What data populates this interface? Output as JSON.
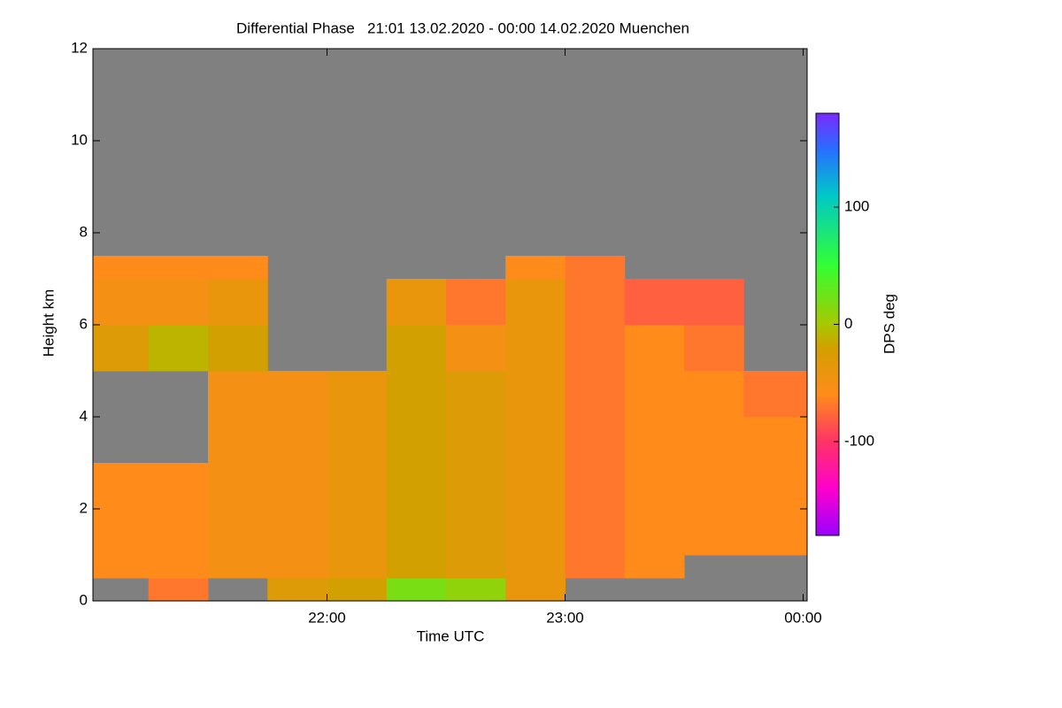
{
  "chart_data": {
    "type": "heatmap",
    "title": "Differential Phase   21:01 13.02.2020 - 00:00 14.02.2020 Muenchen",
    "x_label": "Time UTC",
    "y_label": "Height km",
    "colorbar_label": "DPS deg",
    "xbins": [
      21.0167,
      21.25,
      21.5,
      21.75,
      22,
      22.25,
      22.5,
      22.75,
      23,
      23.25,
      23.5,
      23.75,
      24.0167
    ],
    "ybins": [
      0,
      0.5,
      1,
      2,
      3,
      4,
      5,
      6,
      7,
      7.5
    ],
    "values": [
      [
        null,
        -70,
        null,
        -30,
        -20,
        20,
        10,
        -40,
        null,
        null,
        null,
        null
      ],
      [
        -60,
        -60,
        -50,
        -50,
        -40,
        -20,
        -30,
        -40,
        -70,
        -60,
        null,
        null
      ],
      [
        -60,
        -60,
        -50,
        -50,
        -40,
        -20,
        -30,
        -40,
        -70,
        -60,
        -60,
        -60
      ],
      [
        -60,
        -60,
        -50,
        -50,
        -40,
        -20,
        -30,
        -40,
        -70,
        -60,
        -60,
        -60
      ],
      [
        null,
        null,
        -50,
        -50,
        -40,
        -20,
        -30,
        -40,
        -70,
        -60,
        -60,
        -60
      ],
      [
        null,
        null,
        -50,
        -50,
        -40,
        -20,
        -30,
        -40,
        -70,
        -60,
        -60,
        -70
      ],
      [
        -30,
        -10,
        -20,
        null,
        null,
        -20,
        -50,
        -40,
        -70,
        -60,
        -70,
        null
      ],
      [
        -50,
        -50,
        -40,
        null,
        null,
        -40,
        -70,
        -40,
        -70,
        -80,
        -80,
        null
      ],
      [
        -60,
        -60,
        -60,
        null,
        null,
        null,
        null,
        -60,
        -70,
        null,
        null,
        null
      ]
    ],
    "missing_color": "#808080",
    "colorscale": [
      [
        -180,
        "#9a00ff"
      ],
      [
        -140,
        "#ff00cc"
      ],
      [
        -100,
        "#ff3366"
      ],
      [
        -60,
        "#ff8c1a"
      ],
      [
        -20,
        "#d2a000"
      ],
      [
        0,
        "#a8c800"
      ],
      [
        50,
        "#33ff33"
      ],
      [
        110,
        "#00c8c8"
      ],
      [
        150,
        "#2a6cff"
      ],
      [
        180,
        "#7a2aff"
      ]
    ],
    "xlim": [
      21.0167,
      24.0167
    ],
    "ylim": [
      0,
      12
    ],
    "zlim": [
      -180,
      180
    ],
    "xticks": [
      {
        "value": 22,
        "label": "22:00"
      },
      {
        "value": 23,
        "label": "23:00"
      },
      {
        "value": 24,
        "label": "00:00"
      }
    ],
    "yticks": [
      0,
      2,
      4,
      6,
      8,
      10,
      12
    ],
    "zticks": [
      -100,
      0,
      100
    ]
  }
}
